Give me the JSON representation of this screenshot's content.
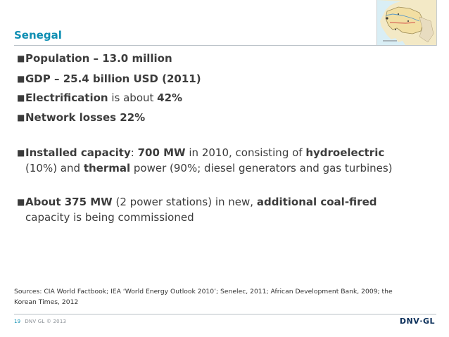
{
  "title": "Senegal",
  "bullets": {
    "population": {
      "bold": "Population –  13.0 million"
    },
    "gdp": {
      "bold": "GDP –  25.4 billion USD (2011)"
    },
    "electrification": {
      "bold1": "Electrification",
      "text1": " is about ",
      "bold2": "42%"
    },
    "losses": {
      "bold": "Network losses 22%"
    },
    "capacity": {
      "bold1": "Installed capacity",
      "text1": ": ",
      "bold2": "700 MW",
      "text2": " in 2010, consisting of ",
      "bold3": "hydroelectric",
      "text3": "(10%) and ",
      "bold4": "thermal",
      "text4": " power (90%;  diesel generators and gas turbines)"
    },
    "coal": {
      "bold1": "About 375 MW",
      "text1": " (2 power stations) in new, ",
      "bold2": "additional coal-fired",
      "text2": "capacity is being commissioned"
    }
  },
  "sources": {
    "line1": "Sources: CIA World Factbook; IEA ‘World Energy Outlook 2010’; Senelec, 2011; African Development Bank, 2009; the",
    "line2": "Korean Times, 2012"
  },
  "footer": {
    "page": "19",
    "copyright": "DNV GL © 2013",
    "logo": "DNV·GL"
  },
  "colors": {
    "accent": "#0f8fb3",
    "logo": "#0b2f5a",
    "text": "#3c3c3c"
  }
}
